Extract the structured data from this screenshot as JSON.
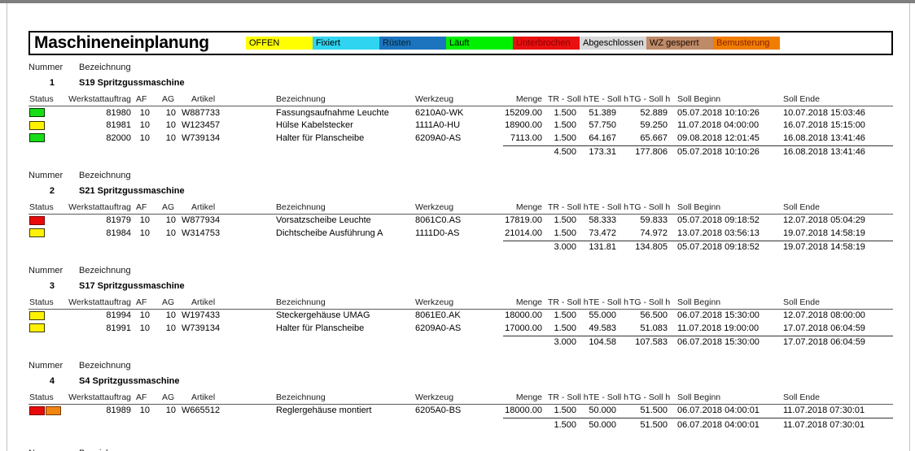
{
  "title": "Maschineneinplanung",
  "legend": [
    {
      "label": "OFFEN",
      "color": "#ffff00",
      "text_color": "#000000"
    },
    {
      "label": "Fixiert",
      "color": "#2fd5f0",
      "text_color": "#000000"
    },
    {
      "label": "Rüsten",
      "color": "#1d74be",
      "text_color": "#00222e"
    },
    {
      "label": "Läuft",
      "color": "#00f000",
      "text_color": "#000000"
    },
    {
      "label": "Unterbrochen",
      "color": "#e81010",
      "text_color": "#8b0000"
    },
    {
      "label": "Abgeschlossen",
      "color": "#d8d8d8",
      "text_color": "#000000"
    },
    {
      "label": "WZ gesperrt",
      "color": "#be8a68",
      "text_color": "#1a0a00"
    },
    {
      "label": "Bemusterung",
      "color": "#f07d00",
      "text_color": "#8b2000"
    }
  ],
  "labels": {
    "nummer": "Nummer",
    "bezeichnung": "Bezeichnung"
  },
  "table_headers": {
    "status": "Status",
    "werkstattauftrag": "Werkstattauftrag",
    "af": "AF",
    "ag": "AG",
    "artikel": "Artikel",
    "bezeichnung": "Bezeichnung",
    "werkzeug": "Werkzeug",
    "menge": "Menge",
    "tr": "TR - Soll h",
    "te": "TE - Soll h",
    "tg": "TG - Soll h",
    "beginn": "Soll Beginn",
    "ende": "Soll Ende"
  },
  "status_colors": {
    "green": {
      "fill": "#17dd17",
      "border": "#003800"
    },
    "yellow": {
      "fill": "#fff200",
      "border": "#3d3800"
    },
    "red": {
      "fill": "#e80b0b",
      "border": "#7b0000"
    },
    "orange": {
      "fill": "#f08511",
      "border": "#7b3a00"
    }
  },
  "sections": [
    {
      "nummer": "1",
      "name": "S19 Spritzgussmaschine",
      "rows": [
        {
          "status": [
            "green"
          ],
          "werkstattauftrag": "81980",
          "af": "10",
          "ag": "10",
          "artikel": "W887733",
          "bezeichnung": "Fassungsaufnahme Leuchte",
          "werkzeug": "6210A0-WK",
          "menge": "15209.00",
          "tr": "1.500",
          "te": "51.389",
          "tg": "52.889",
          "beginn": "05.07.2018 10:10:26",
          "ende": "10.07.2018 15:03:46"
        },
        {
          "status": [
            "yellow"
          ],
          "werkstattauftrag": "81981",
          "af": "10",
          "ag": "10",
          "artikel": "W123457",
          "bezeichnung": "Hülse Kabelstecker",
          "werkzeug": "1111A0-HU",
          "menge": "18900.00",
          "tr": "1.500",
          "te": "57.750",
          "tg": "59.250",
          "beginn": "11.07.2018 04:00:00",
          "ende": "16.07.2018 15:15:00"
        },
        {
          "status": [
            "green"
          ],
          "werkstattauftrag": "82000",
          "af": "10",
          "ag": "10",
          "artikel": "W739134",
          "bezeichnung": "Halter für Planscheibe",
          "werkzeug": "6209A0-AS",
          "menge": "7113.00",
          "tr": "1.500",
          "te": "64.167",
          "tg": "65.667",
          "beginn": "09.08.2018 12:01:45",
          "ende": "16.08.2018 13:41:46"
        }
      ],
      "total": {
        "tr": "4.500",
        "te": "173.31",
        "tg": "177.806",
        "beginn": "05.07.2018 10:10:26",
        "ende": "16.08.2018 13:41:46"
      }
    },
    {
      "nummer": "2",
      "name": "S21 Spritzgussmaschine",
      "rows": [
        {
          "status": [
            "red"
          ],
          "werkstattauftrag": "81979",
          "af": "10",
          "ag": "10",
          "artikel": "W877934",
          "bezeichnung": "Vorsatzscheibe Leuchte",
          "werkzeug": "8061C0.AS",
          "menge": "17819.00",
          "tr": "1.500",
          "te": "58.333",
          "tg": "59.833",
          "beginn": "05.07.2018 09:18:52",
          "ende": "12.07.2018 05:04:29"
        },
        {
          "status": [
            "yellow"
          ],
          "werkstattauftrag": "81984",
          "af": "10",
          "ag": "10",
          "artikel": "W314753",
          "bezeichnung": "Dichtscheibe Ausführung A",
          "werkzeug": "1111D0-AS",
          "menge": "21014.00",
          "tr": "1.500",
          "te": "73.472",
          "tg": "74.972",
          "beginn": "13.07.2018 03:56:13",
          "ende": "19.07.2018 14:58:19"
        }
      ],
      "total": {
        "tr": "3.000",
        "te": "131.81",
        "tg": "134.805",
        "beginn": "05.07.2018 09:18:52",
        "ende": "19.07.2018 14:58:19"
      }
    },
    {
      "nummer": "3",
      "name": "S17 Spritzgussmaschine",
      "rows": [
        {
          "status": [
            "yellow"
          ],
          "werkstattauftrag": "81994",
          "af": "10",
          "ag": "10",
          "artikel": "W197433",
          "bezeichnung": "Steckergehäuse UMAG",
          "werkzeug": "8061E0.AK",
          "menge": "18000.00",
          "tr": "1.500",
          "te": "55.000",
          "tg": "56.500",
          "beginn": "06.07.2018 15:30:00",
          "ende": "12.07.2018 08:00:00"
        },
        {
          "status": [
            "yellow"
          ],
          "werkstattauftrag": "81991",
          "af": "10",
          "ag": "10",
          "artikel": "W739134",
          "bezeichnung": "Halter für Planscheibe",
          "werkzeug": "6209A0-AS",
          "menge": "17000.00",
          "tr": "1.500",
          "te": "49.583",
          "tg": "51.083",
          "beginn": "11.07.2018 19:00:00",
          "ende": "17.07.2018 06:04:59"
        }
      ],
      "total": {
        "tr": "3.000",
        "te": "104.58",
        "tg": "107.583",
        "beginn": "06.07.2018 15:30:00",
        "ende": "17.07.2018 06:04:59"
      }
    },
    {
      "nummer": "4",
      "name": "S4 Spritzgussmaschine",
      "rows": [
        {
          "status": [
            "red",
            "orange"
          ],
          "werkstattauftrag": "81989",
          "af": "10",
          "ag": "10",
          "artikel": "W665512",
          "bezeichnung": "Reglergehäuse montiert",
          "werkzeug": "6205A0-BS",
          "menge": "18000.00",
          "tr": "1.500",
          "te": "50.000",
          "tg": "51.500",
          "beginn": "06.07.2018 04:00:01",
          "ende": "11.07.2018 07:30:01"
        }
      ],
      "total": {
        "tr": "1.500",
        "te": "50.000",
        "tg": "51.500",
        "beginn": "06.07.2018 04:00:01",
        "ende": "11.07.2018 07:30:01"
      }
    }
  ],
  "trailing_stub": true
}
